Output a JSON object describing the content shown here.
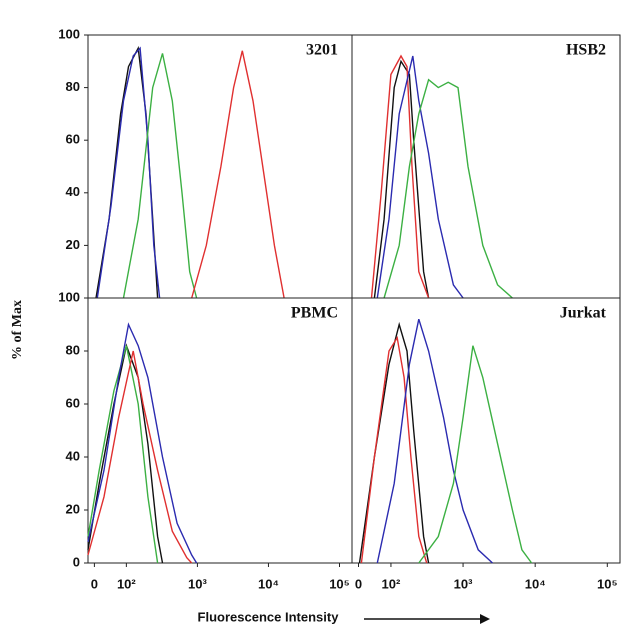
{
  "ylabel": "% of Max",
  "xlabel": "Fluorescence Intensity",
  "chart_data": [
    {
      "type": "line",
      "title": "3201",
      "xscale": "symlog",
      "linthresh": 100,
      "linscale": 0.45,
      "xlim": [
        -20,
        150000
      ],
      "ylim": [
        0,
        100
      ],
      "yticks": [
        20,
        40,
        60,
        80,
        100
      ],
      "series": [
        {
          "color": "#111111",
          "x": [
            5,
            46,
            82,
            107,
            147,
            189,
            235,
            275
          ],
          "values": [
            0,
            30,
            70,
            88,
            95,
            70,
            30,
            0
          ]
        },
        {
          "color": "#2b2bb0",
          "x": [
            9,
            52,
            91,
            125,
            156,
            201,
            243,
            294
          ],
          "values": [
            0,
            35,
            75,
            92,
            95,
            60,
            20,
            0
          ]
        },
        {
          "color": "#3cb043",
          "x": [
            91,
            147,
            235,
            323,
            443,
            606,
            780,
            973
          ],
          "values": [
            0,
            30,
            80,
            93,
            75,
            40,
            10,
            0
          ]
        },
        {
          "color": "#e03030",
          "x": [
            832,
            1334,
            2140,
            3230,
            4290,
            6070,
            8850,
            12130,
            16630
          ],
          "values": [
            0,
            20,
            50,
            80,
            94,
            75,
            45,
            20,
            0
          ]
        }
      ]
    },
    {
      "type": "line",
      "title": "HSB2",
      "xscale": "symlog",
      "linthresh": 100,
      "linscale": 0.45,
      "xlim": [
        -20,
        150000
      ],
      "ylim": [
        0,
        100
      ],
      "series": [
        {
          "color": "#111111",
          "x": [
            49,
            79,
            111,
            138,
            180,
            207,
            284,
            333
          ],
          "values": [
            0,
            30,
            80,
            90,
            85,
            60,
            10,
            0
          ]
        },
        {
          "color": "#e03030",
          "x": [
            40,
            70,
            100,
            138,
            167,
            196,
            243,
            333
          ],
          "values": [
            0,
            40,
            85,
            92,
            88,
            50,
            10,
            0
          ]
        },
        {
          "color": "#2b2bb0",
          "x": [
            58,
            94,
            130,
            201,
            243,
            333,
            454,
            735,
            1000
          ],
          "values": [
            0,
            30,
            70,
            92,
            75,
            55,
            30,
            5,
            0
          ]
        },
        {
          "color": "#3cb043",
          "x": [
            79,
            130,
            180,
            243,
            333,
            454,
            622,
            852,
            1170,
            1880,
            3010,
            4830
          ],
          "values": [
            0,
            20,
            50,
            70,
            83,
            80,
            82,
            80,
            50,
            20,
            5,
            0
          ]
        }
      ]
    },
    {
      "type": "line",
      "title": "PBMC",
      "xscale": "symlog",
      "linthresh": 100,
      "linscale": 0.45,
      "xlim": [
        -20,
        150000
      ],
      "ylim": [
        0,
        100
      ],
      "yticks": [
        0,
        20,
        40,
        60,
        80,
        100
      ],
      "xticks": [
        0,
        {
          "value": 100,
          "label": "10²"
        },
        {
          "value": 1000,
          "label": "10³"
        },
        {
          "value": 10000,
          "label": "10⁴"
        },
        {
          "value": 100000,
          "label": "10⁵"
        }
      ],
      "series": [
        {
          "color": "#111111",
          "x": [
            -20,
            15,
            61,
            100,
            147,
            201,
            275,
            323
          ],
          "values": [
            5,
            30,
            60,
            82,
            70,
            45,
            10,
            0
          ]
        },
        {
          "color": "#3cb043",
          "x": [
            -20,
            15,
            61,
            100,
            147,
            201,
            275
          ],
          "values": [
            10,
            35,
            65,
            82,
            60,
            25,
            0
          ]
        },
        {
          "color": "#e03030",
          "x": [
            -20,
            30,
            76,
            125,
            172,
            275,
            443,
            710,
            832
          ],
          "values": [
            3,
            25,
            55,
            80,
            60,
            35,
            12,
            2,
            0
          ]
        },
        {
          "color": "#2b2bb0",
          "x": [
            -20,
            30,
            76,
            107,
            147,
            201,
            323,
            518,
            832,
            973
          ],
          "values": [
            8,
            35,
            70,
            90,
            82,
            70,
            40,
            15,
            3,
            0
          ]
        }
      ]
    },
    {
      "type": "line",
      "title": "Jurkat",
      "xscale": "symlog",
      "linthresh": 100,
      "linscale": 0.45,
      "xlim": [
        -20,
        150000
      ],
      "ylim": [
        0,
        100
      ],
      "xticks": [
        0,
        {
          "value": 100,
          "label": "10²"
        },
        {
          "value": 1000,
          "label": "10³"
        },
        {
          "value": 10000,
          "label": "10⁴"
        },
        {
          "value": 100000,
          "label": "10⁵"
        }
      ],
      "series": [
        {
          "color": "#111111",
          "x": [
            3,
            49,
            94,
            130,
            167,
            207,
            284,
            333
          ],
          "values": [
            0,
            40,
            75,
            90,
            80,
            50,
            10,
            0
          ]
        },
        {
          "color": "#e03030",
          "x": [
            9,
            49,
            94,
            122,
            152,
            189,
            243,
            313
          ],
          "values": [
            0,
            40,
            80,
            85,
            70,
            40,
            10,
            0
          ]
        },
        {
          "color": "#2b2bb0",
          "x": [
            58,
            111,
            180,
            243,
            333,
            535,
            735,
            1000,
            1620,
            2560
          ],
          "values": [
            0,
            30,
            75,
            92,
            80,
            55,
            35,
            20,
            5,
            0
          ]
        },
        {
          "color": "#3cb043",
          "x": [
            243,
            454,
            735,
            1000,
            1370,
            1880,
            3010,
            4830,
            6550,
            8910
          ],
          "values": [
            0,
            10,
            30,
            55,
            82,
            70,
            45,
            20,
            5,
            0
          ]
        }
      ]
    }
  ]
}
